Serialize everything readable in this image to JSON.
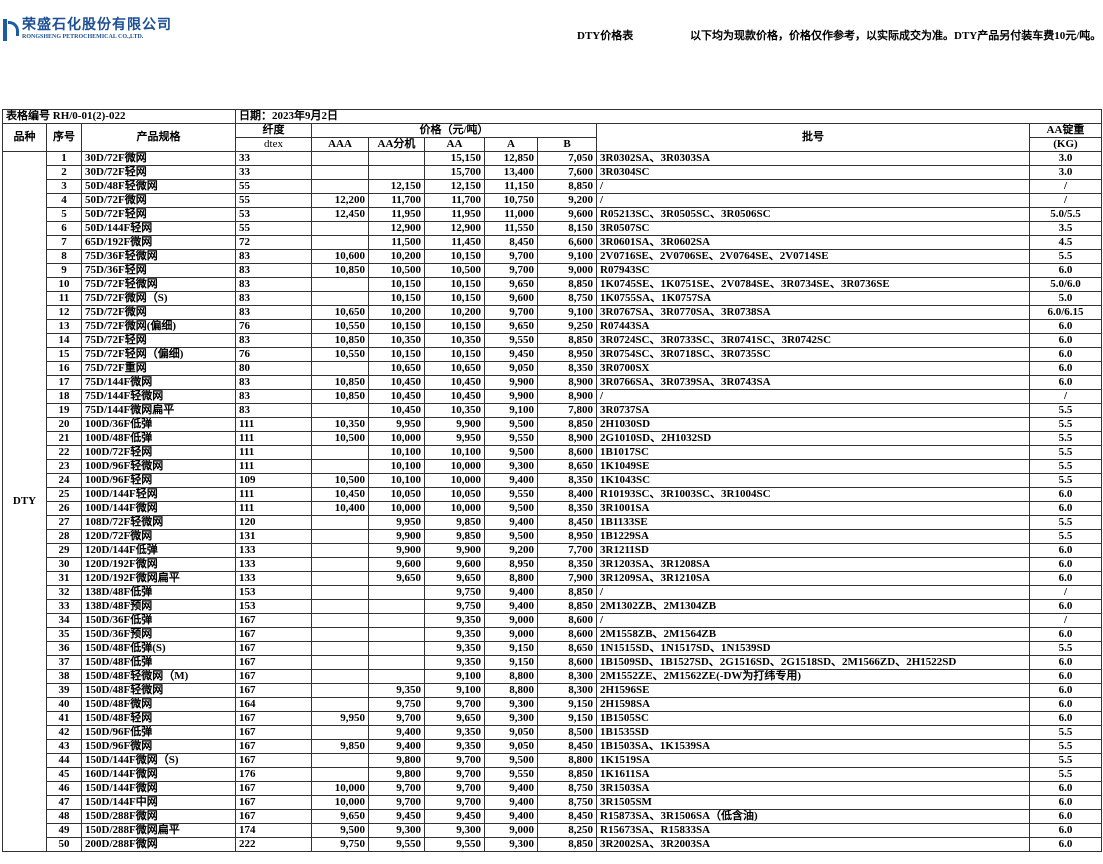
{
  "header": {
    "company_cn": "荣盛石化股份有限公司",
    "company_en": "RONGSHENG PETROCHEMICAL CO.,LTD.",
    "doc_title": "DTY价格表",
    "notice": "以下均为现款价格，价格仅作参考，以实际成交为准。DTY产品另付装车费10元/吨。",
    "brand_color": "#1c5aa6"
  },
  "meta": {
    "form_no": "表格编号 RH/0-01(2)-022",
    "date": "日期：2023年9月2日"
  },
  "columns": {
    "variety": "品种",
    "seq": "序号",
    "spec": "产品规格",
    "denier": "纤度",
    "denier_unit": "dtex",
    "price": "价格（元/吨）",
    "aaa": "AAA",
    "aa_split": "AA分机",
    "aa": "AA",
    "a": "A",
    "b": "B",
    "lot": "批号",
    "weight": "AA锭重",
    "weight_unit": "(KG)"
  },
  "variety": "DTY",
  "rows": [
    [
      "1",
      "30D/72F微网",
      "33",
      "",
      "",
      "15,150",
      "12,850",
      "7,050",
      "3R0302SA、3R0303SA",
      "3.0"
    ],
    [
      "2",
      "30D/72F轻网",
      "33",
      "",
      "",
      "15,700",
      "13,400",
      "7,600",
      "3R0304SC",
      "3.0"
    ],
    [
      "3",
      "50D/48F轻微网",
      "55",
      "",
      "12,150",
      "12,150",
      "11,150",
      "8,850",
      "/",
      "/"
    ],
    [
      "4",
      "50D/72F微网",
      "55",
      "12,200",
      "11,700",
      "11,700",
      "10,750",
      "9,200",
      "/",
      "/"
    ],
    [
      "5",
      "50D/72F轻网",
      "53",
      "12,450",
      "11,950",
      "11,950",
      "11,000",
      "9,600",
      "R05213SC、3R0505SC、3R0506SC",
      "5.0/5.5"
    ],
    [
      "6",
      "50D/144F轻网",
      "55",
      "",
      "12,900",
      "12,900",
      "11,550",
      "8,150",
      "3R0507SC",
      "3.5"
    ],
    [
      "7",
      "65D/192F微网",
      "72",
      "",
      "11,500",
      "11,450",
      "8,450",
      "6,600",
      "3R0601SA、3R0602SA",
      "4.5"
    ],
    [
      "8",
      "75D/36F轻微网",
      "83",
      "10,600",
      "10,200",
      "10,150",
      "9,700",
      "9,100",
      "2V0716SE、2V0706SE、2V0764SE、2V0714SE",
      "5.5"
    ],
    [
      "9",
      "75D/36F轻网",
      "83",
      "10,850",
      "10,500",
      "10,500",
      "9,700",
      "9,000",
      "R07943SC",
      "6.0"
    ],
    [
      "10",
      "75D/72F轻微网",
      "83",
      "",
      "10,150",
      "10,150",
      "9,650",
      "8,850",
      "1K0745SE、1K0751SE、2V0784SE、3R0734SE、3R0736SE",
      "5.0/6.0"
    ],
    [
      "11",
      "75D/72F微网（S)",
      "83",
      "",
      "10,150",
      "10,150",
      "9,600",
      "8,750",
      "1K0755SA、1K0757SA",
      "5.0"
    ],
    [
      "12",
      "75D/72F微网",
      "83",
      "10,650",
      "10,200",
      "10,200",
      "9,700",
      "9,100",
      "3R0767SA、3R0770SA、3R0738SA",
      "6.0/6.15"
    ],
    [
      "13",
      "75D/72F微网(偏细)",
      "76",
      "10,550",
      "10,150",
      "10,150",
      "9,650",
      "9,250",
      "R07443SA",
      "6.0"
    ],
    [
      "14",
      "75D/72F轻网",
      "83",
      "10,850",
      "10,350",
      "10,350",
      "9,550",
      "8,850",
      "3R0724SC、3R0733SC、3R0741SC、3R0742SC",
      "6.0"
    ],
    [
      "15",
      "75D/72F轻网（偏细)",
      "76",
      "10,550",
      "10,150",
      "10,150",
      "9,450",
      "8,950",
      "3R0754SC、3R0718SC、3R0735SC",
      "6.0"
    ],
    [
      "16",
      "75D/72F重网",
      "80",
      "",
      "10,650",
      "10,650",
      "9,050",
      "8,350",
      "3R0700SX",
      "6.0"
    ],
    [
      "17",
      "75D/144F微网",
      "83",
      "10,850",
      "10,450",
      "10,450",
      "9,900",
      "8,900",
      "3R0766SA、3R0739SA、3R0743SA",
      "6.0"
    ],
    [
      "18",
      "75D/144F轻微网",
      "83",
      "10,850",
      "10,450",
      "10,450",
      "9,900",
      "8,900",
      "/",
      "/"
    ],
    [
      "19",
      "75D/144F微网扁平",
      "83",
      "",
      "10,450",
      "10,350",
      "9,100",
      "7,800",
      "3R0737SA",
      "5.5"
    ],
    [
      "20",
      "100D/36F低弹",
      "111",
      "10,350",
      "9,950",
      "9,900",
      "9,500",
      "8,850",
      "2H1030SD",
      "5.5"
    ],
    [
      "21",
      "100D/48F低弹",
      "111",
      "10,500",
      "10,000",
      "9,950",
      "9,550",
      "8,900",
      "2G1010SD、2H1032SD",
      "5.5"
    ],
    [
      "22",
      "100D/72F轻网",
      "111",
      "",
      "10,100",
      "10,100",
      "9,500",
      "8,600",
      "1B1017SC",
      "5.5"
    ],
    [
      "23",
      "100D/96F轻微网",
      "111",
      "",
      "10,100",
      "10,000",
      "9,300",
      "8,650",
      "1K1049SE",
      "5.5"
    ],
    [
      "24",
      "100D/96F轻网",
      "109",
      "10,500",
      "10,100",
      "10,000",
      "9,400",
      "8,350",
      "1K1043SC",
      "5.5"
    ],
    [
      "25",
      "100D/144F轻网",
      "111",
      "10,450",
      "10,050",
      "10,050",
      "9,550",
      "8,400",
      "R10193SC、3R1003SC、3R1004SC",
      "6.0"
    ],
    [
      "26",
      "100D/144F微网",
      "111",
      "10,400",
      "10,000",
      "10,000",
      "9,500",
      "8,350",
      "3R1001SA",
      "6.0"
    ],
    [
      "27",
      "108D/72F轻微网",
      "120",
      "",
      "9,950",
      "9,850",
      "9,400",
      "8,450",
      "1B1133SE",
      "5.5"
    ],
    [
      "28",
      "120D/72F微网",
      "131",
      "",
      "9,900",
      "9,850",
      "9,500",
      "8,950",
      "1B1229SA",
      "5.5"
    ],
    [
      "29",
      "120D/144F低弹",
      "133",
      "",
      "9,900",
      "9,900",
      "9,200",
      "7,700",
      "3R1211SD",
      "6.0"
    ],
    [
      "30",
      "120D/192F微网",
      "133",
      "",
      "9,600",
      "9,600",
      "8,950",
      "8,350",
      "3R1203SA、3R1208SA",
      "6.0"
    ],
    [
      "31",
      "120D/192F微网扁平",
      "133",
      "",
      "9,650",
      "9,650",
      "8,800",
      "7,900",
      "3R1209SA、3R1210SA",
      "6.0"
    ],
    [
      "32",
      "138D/48F低弹",
      "153",
      "",
      "",
      "9,750",
      "9,400",
      "8,850",
      "/",
      "/"
    ],
    [
      "33",
      "138D/48F预网",
      "153",
      "",
      "",
      "9,750",
      "9,400",
      "8,850",
      "2M1302ZB、2M1304ZB",
      "6.0"
    ],
    [
      "34",
      "150D/36F低弹",
      "167",
      "",
      "",
      "9,350",
      "9,000",
      "8,600",
      "/",
      "/"
    ],
    [
      "35",
      "150D/36F预网",
      "167",
      "",
      "",
      "9,350",
      "9,000",
      "8,600",
      "2M1558ZB、2M1564ZB",
      "6.0"
    ],
    [
      "36",
      "150D/48F低弹(S)",
      "167",
      "",
      "",
      "9,350",
      "9,150",
      "8,650",
      "1N1515SD、1N1517SD、1N1539SD",
      "5.5"
    ],
    [
      "37",
      "150D/48F低弹",
      "167",
      "",
      "",
      "9,350",
      "9,150",
      "8,600",
      "1B1509SD、1B1527SD、2G1516SD、2G1518SD、2M1566ZD、2H1522SD",
      "6.0"
    ],
    [
      "38",
      "150D/48F轻微网（M)",
      "167",
      "",
      "",
      "9,100",
      "8,800",
      "8,300",
      "2M1552ZE、2M1562ZE(-DW为打纬专用)",
      "6.0"
    ],
    [
      "39",
      "150D/48F轻微网",
      "167",
      "",
      "9,350",
      "9,100",
      "8,800",
      "8,300",
      "2H1596SE",
      "6.0"
    ],
    [
      "40",
      "150D/48F微网",
      "164",
      "",
      "9,750",
      "9,700",
      "9,300",
      "9,150",
      "2H1598SA",
      "6.0"
    ],
    [
      "41",
      "150D/48F轻网",
      "167",
      "9,950",
      "9,700",
      "9,650",
      "9,300",
      "9,150",
      "1B1505SC",
      "6.0"
    ],
    [
      "42",
      "150D/96F低弹",
      "167",
      "",
      "9,400",
      "9,350",
      "9,050",
      "8,500",
      "1B1535SD",
      "5.5"
    ],
    [
      "43",
      "150D/96F微网",
      "167",
      "9,850",
      "9,400",
      "9,350",
      "9,050",
      "8,450",
      "1B1503SA、1K1539SA",
      "5.5"
    ],
    [
      "44",
      "150D/144F微网（S)",
      "167",
      "",
      "9,800",
      "9,700",
      "9,500",
      "8,800",
      "1K1519SA",
      "5.5"
    ],
    [
      "45",
      "160D/144F微网",
      "176",
      "",
      "9,800",
      "9,700",
      "9,550",
      "8,850",
      "1K1611SA",
      "5.5"
    ],
    [
      "46",
      "150D/144F微网",
      "167",
      "10,000",
      "9,700",
      "9,700",
      "9,400",
      "8,750",
      "3R1503SA",
      "6.0"
    ],
    [
      "47",
      "150D/144F中网",
      "167",
      "10,000",
      "9,700",
      "9,700",
      "9,400",
      "8,750",
      "3R1505SM",
      "6.0"
    ],
    [
      "48",
      "150D/288F微网",
      "167",
      "9,650",
      "9,450",
      "9,450",
      "9,400",
      "8,450",
      "R15873SA、3R1506SA（低含油)",
      "6.0"
    ],
    [
      "49",
      "150D/288F微网扁平",
      "174",
      "9,500",
      "9,300",
      "9,300",
      "9,000",
      "8,250",
      "R15673SA、R15833SA",
      "6.0"
    ],
    [
      "50",
      "200D/288F微网",
      "222",
      "9,750",
      "9,550",
      "9,550",
      "9,300",
      "8,850",
      "3R2002SA、3R2003SA",
      "6.0"
    ]
  ]
}
